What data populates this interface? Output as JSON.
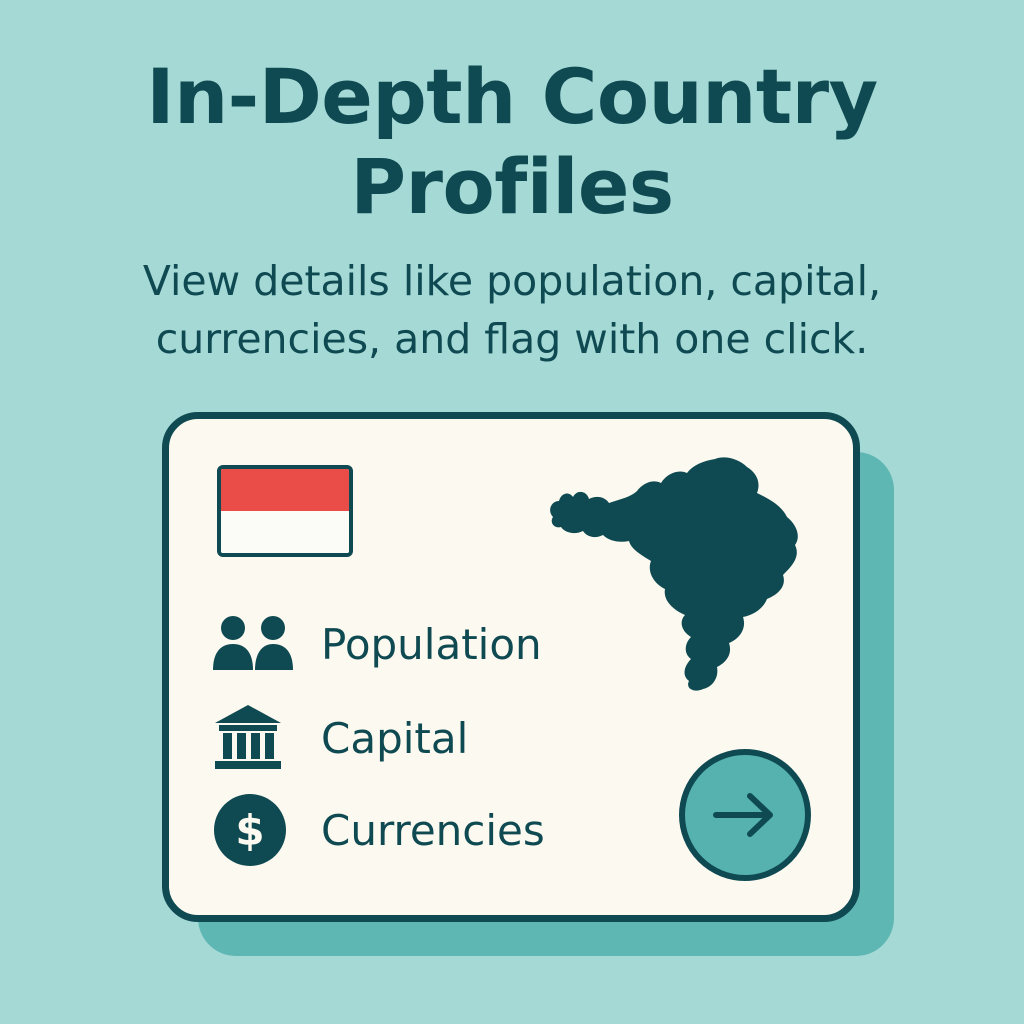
{
  "header": {
    "title_line1": "In-Depth Country",
    "title_line2": "Profiles",
    "subtitle_line1": "View details like population, capital,",
    "subtitle_line2": "currencies, and flag with one click."
  },
  "card": {
    "flag": {
      "top_color": "#ea4c47",
      "bottom_color": "#fbfbf8"
    },
    "map_icon": "country-map-silhouette",
    "items": [
      {
        "icon": "people-icon",
        "label": "Population"
      },
      {
        "icon": "bank-icon",
        "label": "Capital"
      },
      {
        "icon": "dollar-icon",
        "label": "Currencies"
      }
    ],
    "go_button_icon": "arrow-right-icon"
  },
  "colors": {
    "background": "#a5d9d6",
    "primary": "#0f4a52",
    "card": "#fcfaf0",
    "shadow": "#5fb7b3",
    "accent": "#55b2ae"
  }
}
